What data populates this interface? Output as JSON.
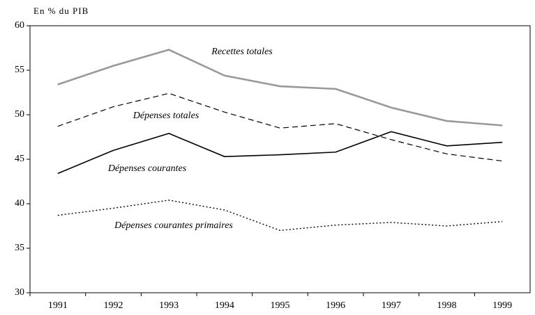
{
  "chart_data": {
    "type": "line",
    "y_label": "En % du PIB",
    "categories": [
      "1991",
      "1992",
      "1993",
      "1994",
      "1995",
      "1996",
      "1997",
      "1998",
      "1999"
    ],
    "series": [
      {
        "name": "Recettes totales",
        "color": "#999999",
        "style": "solid",
        "values": [
          53.4,
          55.5,
          57.3,
          54.4,
          53.2,
          52.9,
          50.8,
          49.3,
          48.8
        ]
      },
      {
        "name": "Dépenses totales",
        "color": "#000000",
        "style": "dashed",
        "values": [
          48.7,
          50.9,
          52.4,
          50.3,
          48.5,
          49.0,
          47.2,
          45.6,
          44.8
        ]
      },
      {
        "name": "Dépenses courantes",
        "color": "#000000",
        "style": "solid",
        "values": [
          43.4,
          46.0,
          47.9,
          45.3,
          45.5,
          45.8,
          48.1,
          46.5,
          46.9
        ]
      },
      {
        "name": "Dépenses courantes primaires",
        "color": "#000000",
        "style": "dotted",
        "values": [
          38.7,
          39.5,
          40.4,
          39.3,
          37.0,
          37.6,
          37.9,
          37.5,
          38.0
        ]
      }
    ],
    "ylim": [
      30,
      60
    ],
    "yticks": [
      30,
      35,
      40,
      45,
      50,
      55,
      60
    ],
    "grid": false
  }
}
